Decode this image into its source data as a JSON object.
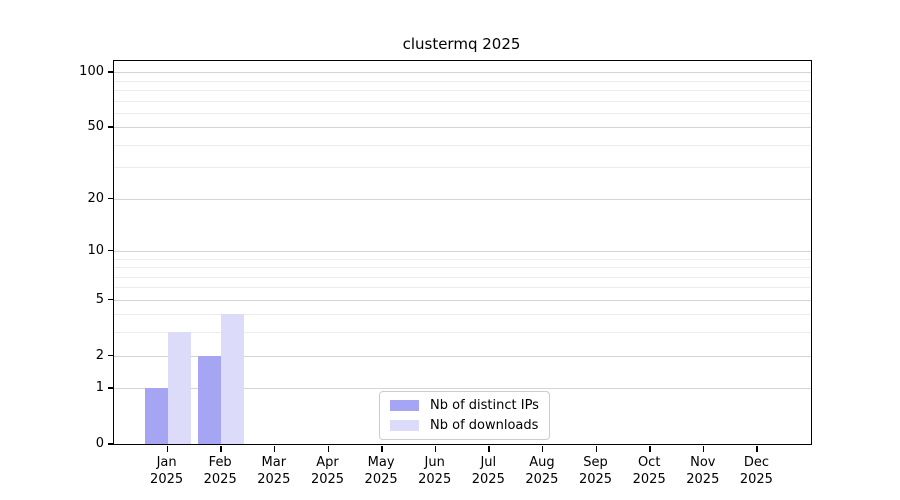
{
  "figure": {
    "background": "#ffffff"
  },
  "chart_data": {
    "type": "bar",
    "title": "clustermq 2025",
    "categories": [
      "Jan",
      "Feb",
      "Mar",
      "Apr",
      "May",
      "Jun",
      "Jul",
      "Aug",
      "Sep",
      "Oct",
      "Nov",
      "Dec"
    ],
    "category_year": "2025",
    "series": [
      {
        "name": "Nb of distinct IPs",
        "color": "#a5a5f3",
        "values": [
          1,
          2,
          0,
          0,
          0,
          0,
          0,
          0,
          0,
          0,
          0,
          0
        ]
      },
      {
        "name": "Nb of downloads",
        "color": "#dcdcfa",
        "values": [
          3,
          4,
          0,
          0,
          0,
          0,
          0,
          0,
          0,
          0,
          0,
          0
        ]
      }
    ],
    "xlabel": "",
    "ylabel": "",
    "yscale": "log1p",
    "ylim": [
      0,
      115
    ],
    "yticks": [
      0,
      1,
      2,
      5,
      10,
      20,
      50,
      100
    ],
    "yticks_minor": [
      3,
      4,
      6,
      7,
      8,
      9,
      30,
      40,
      60,
      70,
      80,
      90
    ],
    "grid": true,
    "legend_position": "lower center",
    "colors": {
      "grid_major": "#d4d4d4",
      "grid_minor": "#ececec",
      "spine": "#000000",
      "text": "#000000",
      "legend_border": "#cccccc",
      "legend_bg": "#ffffff"
    }
  }
}
